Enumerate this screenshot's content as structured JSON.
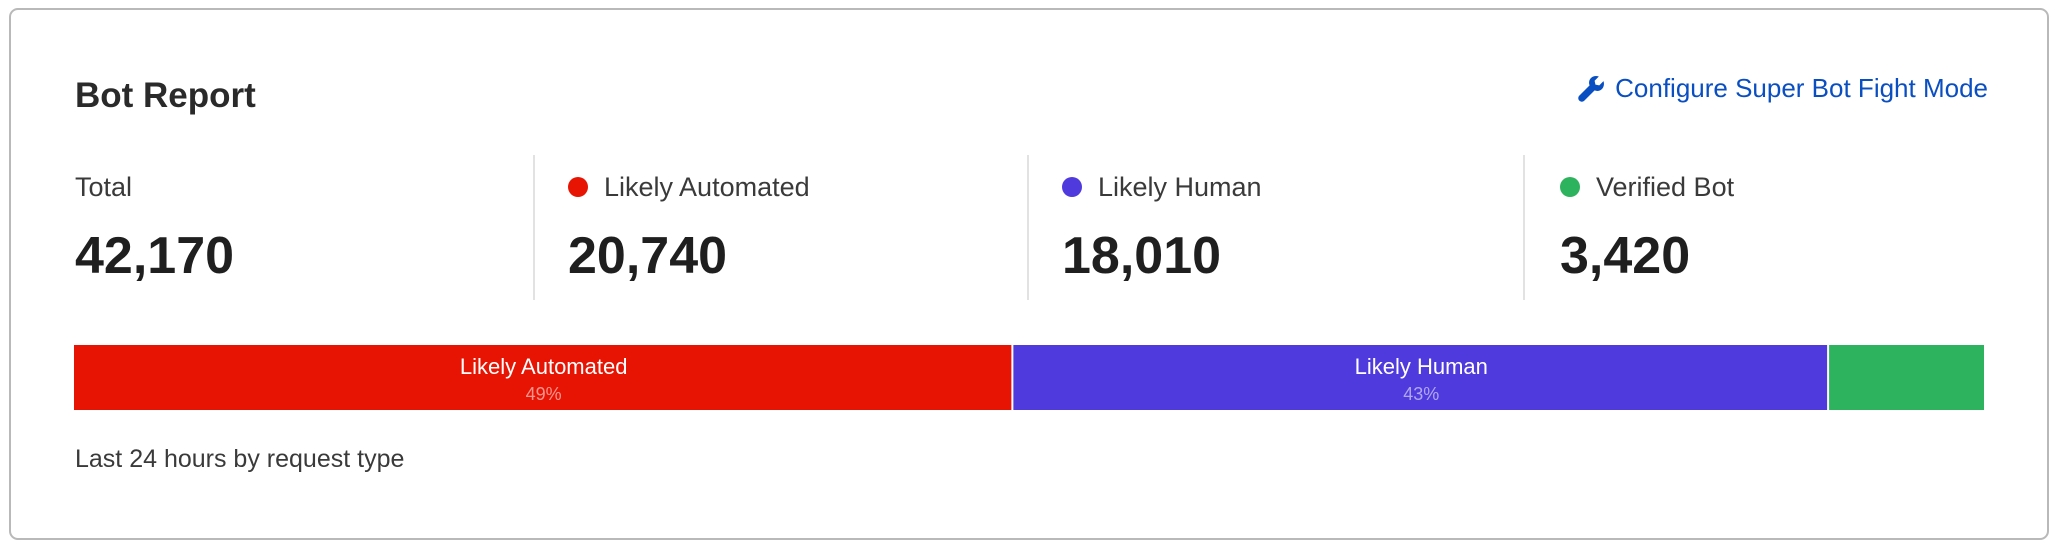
{
  "header": {
    "title": "Bot Report",
    "link_label": "Configure Super Bot Fight Mode",
    "link_icon": "wrench-icon"
  },
  "stats": [
    {
      "label": "Total",
      "value": "42,170"
    },
    {
      "label": "Likely Automated",
      "value": "20,740",
      "color": "#e81403"
    },
    {
      "label": "Likely Human",
      "value": "18,010",
      "color": "#4f3ade"
    },
    {
      "label": "Verified Bot",
      "value": "3,420",
      "color": "#2db35d"
    }
  ],
  "chart_data": {
    "type": "bar",
    "orientation": "horizontal-stacked",
    "categories": [
      "Likely Automated",
      "Likely Human",
      "Verified Bot"
    ],
    "values": [
      20740,
      18010,
      3420
    ],
    "percent_labels": [
      "49%",
      "43%",
      ""
    ],
    "colors": [
      "#e81403",
      "#4f3ade",
      "#2db35d"
    ]
  },
  "footer": "Last 24 hours by request type"
}
